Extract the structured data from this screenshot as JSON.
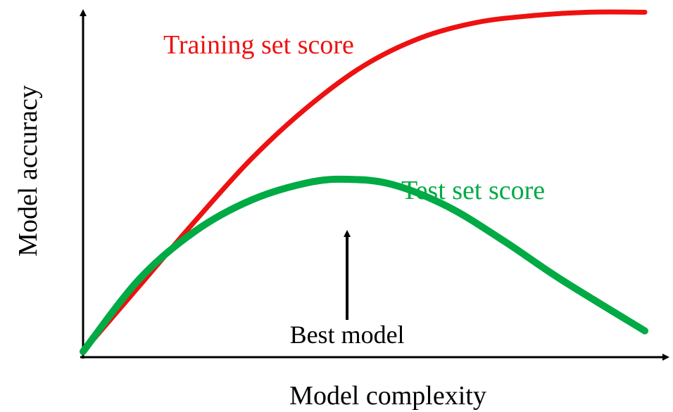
{
  "chart_data": {
    "type": "line",
    "xlabel": "Model complexity",
    "ylabel": "Model accuracy",
    "xlim": [
      0,
      10
    ],
    "ylim": [
      0,
      10
    ],
    "grid": false,
    "series": [
      {
        "name": "Training set score",
        "color": "#ee1111",
        "x": [
          0,
          1,
          2,
          3,
          4,
          5,
          6,
          7,
          8,
          9,
          10
        ],
        "y": [
          0,
          1.9,
          3.8,
          5.6,
          7.1,
          8.3,
          9.1,
          9.55,
          9.75,
          9.85,
          9.85
        ]
      },
      {
        "name": "Test set score",
        "color": "#00aa44",
        "x": [
          0,
          1,
          2,
          3,
          4,
          4.7,
          5.5,
          6.5,
          7.5,
          8.5,
          10
        ],
        "y": [
          0,
          2.1,
          3.5,
          4.4,
          4.9,
          5.0,
          4.85,
          4.2,
          3.2,
          2.1,
          0.6
        ]
      }
    ],
    "annotations": [
      {
        "text": "Best model",
        "x": 4.7,
        "y_from": 0.8,
        "y_to": 4.5
      }
    ]
  }
}
